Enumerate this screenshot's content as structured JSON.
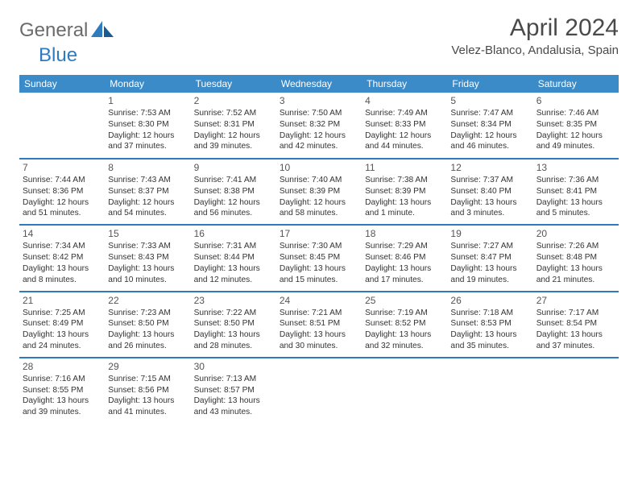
{
  "logo": {
    "text_general": "General",
    "text_blue": "Blue"
  },
  "header": {
    "title": "April 2024",
    "location": "Velez-Blanco, Andalusia, Spain"
  },
  "weekdays": [
    "Sunday",
    "Monday",
    "Tuesday",
    "Wednesday",
    "Thursday",
    "Friday",
    "Saturday"
  ],
  "colors": {
    "header_bg": "#3b8bc9",
    "row_border": "#2f7bbf",
    "logo_blue": "#2f7bbf",
    "logo_gray": "#6b6b6b"
  },
  "weeks": [
    [
      {
        "num": "",
        "sunrise": "",
        "sunset": "",
        "daylight": ""
      },
      {
        "num": "1",
        "sunrise": "Sunrise: 7:53 AM",
        "sunset": "Sunset: 8:30 PM",
        "daylight": "Daylight: 12 hours and 37 minutes."
      },
      {
        "num": "2",
        "sunrise": "Sunrise: 7:52 AM",
        "sunset": "Sunset: 8:31 PM",
        "daylight": "Daylight: 12 hours and 39 minutes."
      },
      {
        "num": "3",
        "sunrise": "Sunrise: 7:50 AM",
        "sunset": "Sunset: 8:32 PM",
        "daylight": "Daylight: 12 hours and 42 minutes."
      },
      {
        "num": "4",
        "sunrise": "Sunrise: 7:49 AM",
        "sunset": "Sunset: 8:33 PM",
        "daylight": "Daylight: 12 hours and 44 minutes."
      },
      {
        "num": "5",
        "sunrise": "Sunrise: 7:47 AM",
        "sunset": "Sunset: 8:34 PM",
        "daylight": "Daylight: 12 hours and 46 minutes."
      },
      {
        "num": "6",
        "sunrise": "Sunrise: 7:46 AM",
        "sunset": "Sunset: 8:35 PM",
        "daylight": "Daylight: 12 hours and 49 minutes."
      }
    ],
    [
      {
        "num": "7",
        "sunrise": "Sunrise: 7:44 AM",
        "sunset": "Sunset: 8:36 PM",
        "daylight": "Daylight: 12 hours and 51 minutes."
      },
      {
        "num": "8",
        "sunrise": "Sunrise: 7:43 AM",
        "sunset": "Sunset: 8:37 PM",
        "daylight": "Daylight: 12 hours and 54 minutes."
      },
      {
        "num": "9",
        "sunrise": "Sunrise: 7:41 AM",
        "sunset": "Sunset: 8:38 PM",
        "daylight": "Daylight: 12 hours and 56 minutes."
      },
      {
        "num": "10",
        "sunrise": "Sunrise: 7:40 AM",
        "sunset": "Sunset: 8:39 PM",
        "daylight": "Daylight: 12 hours and 58 minutes."
      },
      {
        "num": "11",
        "sunrise": "Sunrise: 7:38 AM",
        "sunset": "Sunset: 8:39 PM",
        "daylight": "Daylight: 13 hours and 1 minute."
      },
      {
        "num": "12",
        "sunrise": "Sunrise: 7:37 AM",
        "sunset": "Sunset: 8:40 PM",
        "daylight": "Daylight: 13 hours and 3 minutes."
      },
      {
        "num": "13",
        "sunrise": "Sunrise: 7:36 AM",
        "sunset": "Sunset: 8:41 PM",
        "daylight": "Daylight: 13 hours and 5 minutes."
      }
    ],
    [
      {
        "num": "14",
        "sunrise": "Sunrise: 7:34 AM",
        "sunset": "Sunset: 8:42 PM",
        "daylight": "Daylight: 13 hours and 8 minutes."
      },
      {
        "num": "15",
        "sunrise": "Sunrise: 7:33 AM",
        "sunset": "Sunset: 8:43 PM",
        "daylight": "Daylight: 13 hours and 10 minutes."
      },
      {
        "num": "16",
        "sunrise": "Sunrise: 7:31 AM",
        "sunset": "Sunset: 8:44 PM",
        "daylight": "Daylight: 13 hours and 12 minutes."
      },
      {
        "num": "17",
        "sunrise": "Sunrise: 7:30 AM",
        "sunset": "Sunset: 8:45 PM",
        "daylight": "Daylight: 13 hours and 15 minutes."
      },
      {
        "num": "18",
        "sunrise": "Sunrise: 7:29 AM",
        "sunset": "Sunset: 8:46 PM",
        "daylight": "Daylight: 13 hours and 17 minutes."
      },
      {
        "num": "19",
        "sunrise": "Sunrise: 7:27 AM",
        "sunset": "Sunset: 8:47 PM",
        "daylight": "Daylight: 13 hours and 19 minutes."
      },
      {
        "num": "20",
        "sunrise": "Sunrise: 7:26 AM",
        "sunset": "Sunset: 8:48 PM",
        "daylight": "Daylight: 13 hours and 21 minutes."
      }
    ],
    [
      {
        "num": "21",
        "sunrise": "Sunrise: 7:25 AM",
        "sunset": "Sunset: 8:49 PM",
        "daylight": "Daylight: 13 hours and 24 minutes."
      },
      {
        "num": "22",
        "sunrise": "Sunrise: 7:23 AM",
        "sunset": "Sunset: 8:50 PM",
        "daylight": "Daylight: 13 hours and 26 minutes."
      },
      {
        "num": "23",
        "sunrise": "Sunrise: 7:22 AM",
        "sunset": "Sunset: 8:50 PM",
        "daylight": "Daylight: 13 hours and 28 minutes."
      },
      {
        "num": "24",
        "sunrise": "Sunrise: 7:21 AM",
        "sunset": "Sunset: 8:51 PM",
        "daylight": "Daylight: 13 hours and 30 minutes."
      },
      {
        "num": "25",
        "sunrise": "Sunrise: 7:19 AM",
        "sunset": "Sunset: 8:52 PM",
        "daylight": "Daylight: 13 hours and 32 minutes."
      },
      {
        "num": "26",
        "sunrise": "Sunrise: 7:18 AM",
        "sunset": "Sunset: 8:53 PM",
        "daylight": "Daylight: 13 hours and 35 minutes."
      },
      {
        "num": "27",
        "sunrise": "Sunrise: 7:17 AM",
        "sunset": "Sunset: 8:54 PM",
        "daylight": "Daylight: 13 hours and 37 minutes."
      }
    ],
    [
      {
        "num": "28",
        "sunrise": "Sunrise: 7:16 AM",
        "sunset": "Sunset: 8:55 PM",
        "daylight": "Daylight: 13 hours and 39 minutes."
      },
      {
        "num": "29",
        "sunrise": "Sunrise: 7:15 AM",
        "sunset": "Sunset: 8:56 PM",
        "daylight": "Daylight: 13 hours and 41 minutes."
      },
      {
        "num": "30",
        "sunrise": "Sunrise: 7:13 AM",
        "sunset": "Sunset: 8:57 PM",
        "daylight": "Daylight: 13 hours and 43 minutes."
      },
      {
        "num": "",
        "sunrise": "",
        "sunset": "",
        "daylight": ""
      },
      {
        "num": "",
        "sunrise": "",
        "sunset": "",
        "daylight": ""
      },
      {
        "num": "",
        "sunrise": "",
        "sunset": "",
        "daylight": ""
      },
      {
        "num": "",
        "sunrise": "",
        "sunset": "",
        "daylight": ""
      }
    ]
  ]
}
